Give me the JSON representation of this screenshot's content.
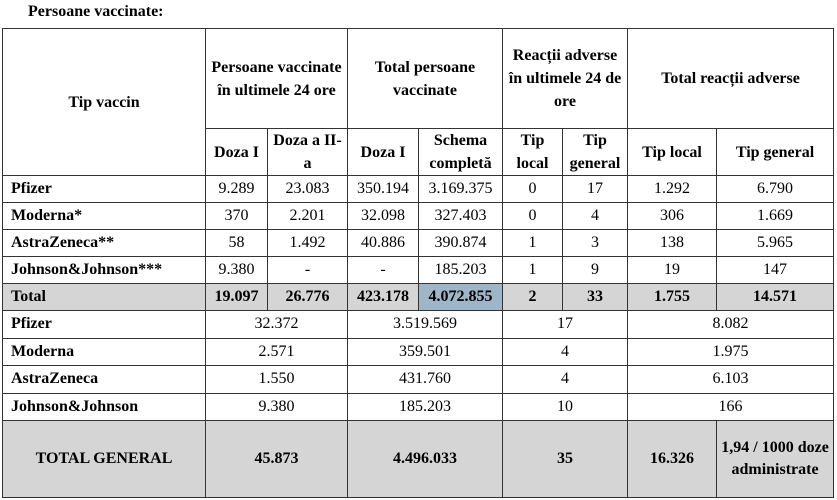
{
  "title": "Persoane vaccinate:",
  "table": {
    "corner": "Tip vaccin",
    "groups": [
      "Persoane vaccinate în ultimele 24 ore",
      "Total persoane vaccinate",
      "Reacții adverse în ultimele 24 de ore",
      "Total reacții adverse"
    ],
    "subheaders": [
      "Doza I",
      "Doza a II-a",
      "Doza I",
      "Schema completă",
      "Tip local",
      "Tip general",
      "Tip local",
      "Tip general"
    ],
    "rows": [
      [
        "Pfizer",
        "9.289",
        "23.083",
        "350.194",
        "3.169.375",
        "0",
        "17",
        "1.292",
        "6.790"
      ],
      [
        "Moderna*",
        "370",
        "2.201",
        "32.098",
        "327.403",
        "0",
        "4",
        "306",
        "1.669"
      ],
      [
        "AstraZeneca**",
        "58",
        "1.492",
        "40.886",
        "390.874",
        "1",
        "3",
        "138",
        "5.965"
      ],
      [
        "Johnson&Johnson***",
        "9.380",
        "-",
        "-",
        "185.203",
        "1",
        "9",
        "19",
        "147"
      ]
    ],
    "total": [
      "Total",
      "19.097",
      "26.776",
      "423.178",
      "4.072.855",
      "2",
      "33",
      "1.755",
      "14.571"
    ],
    "summary": [
      [
        "Pfizer",
        "32.372",
        "3.519.569",
        "17",
        "8.082"
      ],
      [
        "Moderna",
        "2.571",
        "359.501",
        "4",
        "1.975"
      ],
      [
        "AstraZeneca",
        "1.550",
        "431.760",
        "4",
        "6.103"
      ],
      [
        "Johnson&Johnson",
        "9.380",
        "185.203",
        "10",
        "166"
      ]
    ],
    "grand_total": [
      "TOTAL GENERAL",
      "45.873",
      "4.496.033",
      "35",
      "16.326",
      "1,94 / 1000 doze administrate"
    ]
  }
}
